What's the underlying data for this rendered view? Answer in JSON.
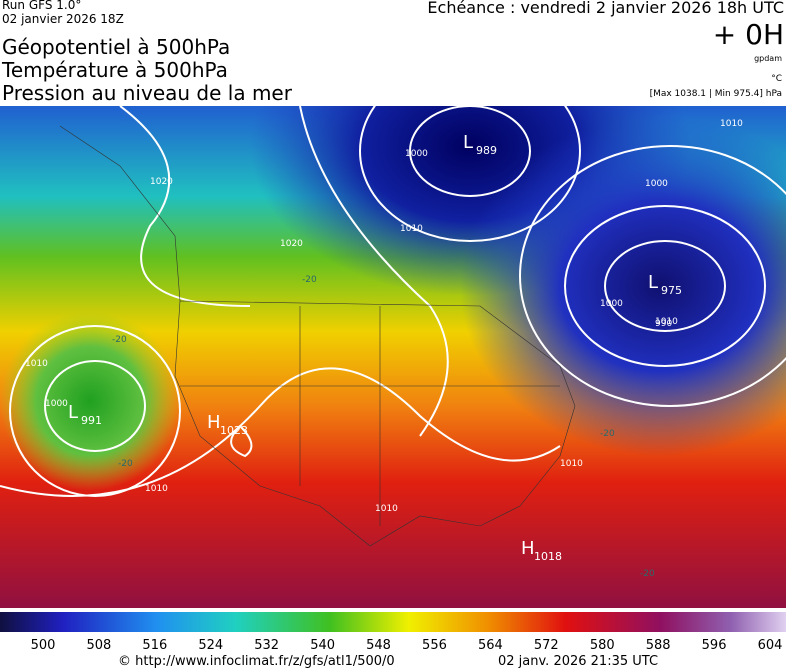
{
  "header": {
    "run": "Run GFS 1.0°",
    "run_date": "02 janvier 2026 18Z",
    "titles": [
      "Géopotentiel à 500hPa",
      "Température à 500hPa",
      "Pression au niveau de la mer"
    ],
    "forecast": "Echéance : vendredi 2 janvier 2026 18h UTC",
    "lead": "+ 0H",
    "unit_geo": "gpdam",
    "unit_temp": "°C",
    "pressure_range": "[Max 1038.1 | Min 975.4] hPa"
  },
  "map": {
    "centers": [
      {
        "letter": "L",
        "value": "989"
      },
      {
        "letter": "L",
        "value": "975"
      },
      {
        "letter": "L",
        "value": "991"
      },
      {
        "letter": "H",
        "value": "1023"
      },
      {
        "letter": "H",
        "value": "1018"
      }
    ],
    "isobar_labels": [
      "1000",
      "1010",
      "1020",
      "1020",
      "1010",
      "1000",
      "1010",
      "990",
      "1000",
      "1010",
      "1000",
      "1010",
      "1010",
      "1010"
    ],
    "temp_labels": [
      "-20",
      "-20",
      "-20",
      "-20",
      "-20"
    ]
  },
  "scale": {
    "labels": [
      500,
      508,
      516,
      524,
      532,
      540,
      548,
      556,
      564,
      572,
      580,
      588,
      596,
      604
    ]
  },
  "footer": {
    "source": "© http://www.infoclimat.fr/z/gfs/atl1/500/0",
    "generated": "02 janv. 2026 21:35 UTC"
  }
}
